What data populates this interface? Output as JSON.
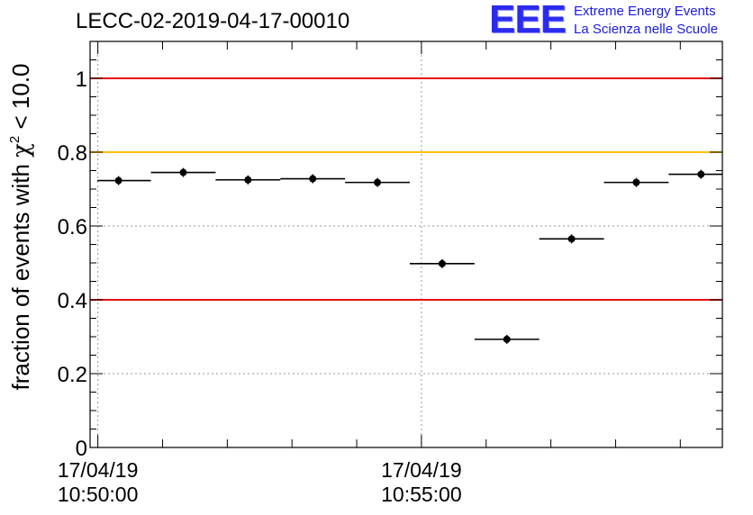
{
  "header": {
    "title": "LECC-02-2019-04-17-00010",
    "logo_text": "EEE",
    "logo_line1": "Extreme Energy Events",
    "logo_line2": "La Scienza nelle Scuole"
  },
  "colors": {
    "red_line": "#e8110e",
    "yellow_line": "#ffc000",
    "logo_blue": "#2b2bf0",
    "grid": "#9a9a9a",
    "axis": "#000000"
  },
  "chart_data": {
    "type": "scatter",
    "title": "LECC-02-2019-04-17-00010",
    "xlabel": "",
    "ylabel": "fraction of events with χ² < 10.0",
    "ylabel_parts": {
      "pre": "fraction of events with ",
      "chi": "χ",
      "sup": "2",
      "post": " < 10.0"
    },
    "ylim": [
      0,
      1.1
    ],
    "xlim_minutes": [
      -0.12,
      9.65
    ],
    "yticks": [
      0,
      0.2,
      0.4,
      0.6,
      0.8,
      1
    ],
    "ytick_labels": [
      "0",
      "0.2",
      "0.4",
      "0.6",
      "0.8",
      "1"
    ],
    "xticks_labeled": [
      {
        "minutes": 0,
        "date": "17/04/19",
        "time": "10:50:00"
      },
      {
        "minutes": 5,
        "date": "17/04/19",
        "time": "10:55:00"
      }
    ],
    "grid": "dotted, at y ticks and labeled x ticks",
    "reference_lines": [
      {
        "y": 1.0,
        "color": "red"
      },
      {
        "y": 0.8,
        "color": "yellow"
      },
      {
        "y": 0.4,
        "color": "red"
      }
    ],
    "series": [
      {
        "x_start_minutes": [
          -0.01,
          0.82,
          1.82,
          2.82,
          3.82,
          4.82,
          5.82,
          6.82,
          7.82,
          8.82
        ],
        "x_end_minutes": [
          0.82,
          1.82,
          2.82,
          3.82,
          4.82,
          5.82,
          6.82,
          7.82,
          8.82,
          9.65
        ],
        "x_center_minutes": [
          0.32,
          1.32,
          2.32,
          3.32,
          4.32,
          5.32,
          6.32,
          7.32,
          8.32,
          9.32
        ],
        "y": [
          0.723,
          0.745,
          0.725,
          0.728,
          0.718,
          0.498,
          0.293,
          0.565,
          0.718,
          0.74
        ]
      }
    ]
  }
}
